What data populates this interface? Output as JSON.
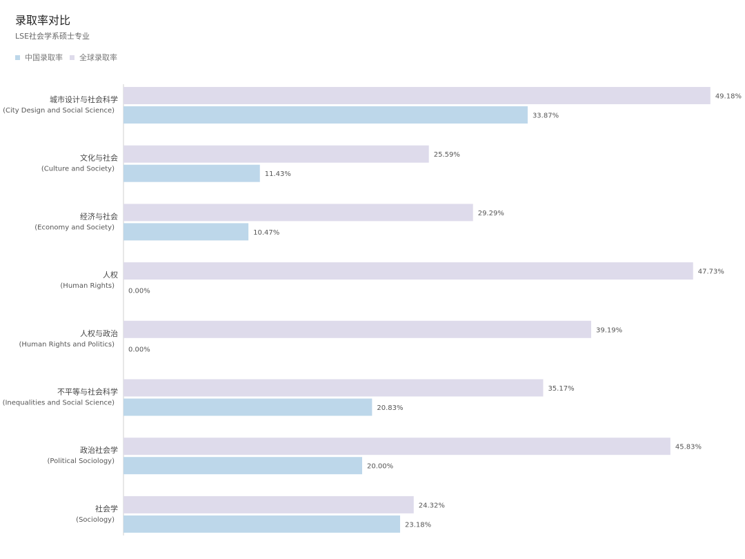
{
  "colors": {
    "china": "#bdd7ea",
    "global": "#dedbeb",
    "axis": "#cfcfcf"
  },
  "chart_data": {
    "type": "bar",
    "orientation": "horizontal",
    "title": "录取率对比",
    "subtitle": "LSE社会学系硕士专业",
    "legend_position": "top-left",
    "grid": false,
    "xlim": [
      0,
      50
    ],
    "categories": [
      {
        "zh": "城市设计与社会科学",
        "en": "(City Design and Social Science)"
      },
      {
        "zh": "文化与社会",
        "en": "(Culture and Society)"
      },
      {
        "zh": "经济与社会",
        "en": "(Economy and Society)"
      },
      {
        "zh": "人权",
        "en": "(Human Rights)"
      },
      {
        "zh": "人权与政治",
        "en": "(Human Rights and Politics)"
      },
      {
        "zh": "不平等与社会科学",
        "en": "(Inequalities and Social Science)"
      },
      {
        "zh": "政治社会学",
        "en": "(Political Sociology)"
      },
      {
        "zh": "社会学",
        "en": "(Sociology)"
      }
    ],
    "series": [
      {
        "name": "全球录取率",
        "color": "#dedbeb",
        "values": [
          49.18,
          25.59,
          29.29,
          47.73,
          39.19,
          35.17,
          45.83,
          24.32
        ],
        "labels": [
          "49.18%",
          "25.59%",
          "29.29%",
          "47.73%",
          "39.19%",
          "35.17%",
          "45.83%",
          "24.32%"
        ]
      },
      {
        "name": "中国录取率",
        "color": "#bdd7ea",
        "values": [
          33.87,
          11.43,
          10.47,
          0.0,
          0.0,
          20.83,
          20.0,
          23.18
        ],
        "labels": [
          "33.87%",
          "11.43%",
          "10.47%",
          "0.00%",
          "0.00%",
          "20.83%",
          "20.00%",
          "23.18%"
        ]
      }
    ]
  }
}
